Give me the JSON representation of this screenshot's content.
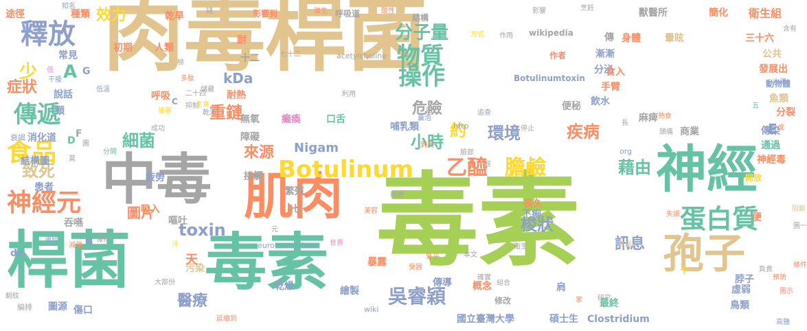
{
  "colors": {
    "tan": "#e2c48f",
    "green": "#a6cf55",
    "teal": "#66c2a5",
    "orange": "#fc8d62",
    "gray": "#a5a5a5",
    "slate": "#8da0cb",
    "pink": "#e78ac3",
    "yellow": "#ffd92f"
  },
  "words": [
    {
      "t": "肉毒桿菌",
      "c": "tan",
      "s": 118,
      "v": false
    },
    {
      "t": "毒素",
      "c": "green",
      "s": 148,
      "v": false
    },
    {
      "t": "桿菌",
      "c": "teal",
      "s": 90,
      "v": false
    },
    {
      "t": "毒素",
      "c": "teal",
      "s": 90,
      "v": false
    },
    {
      "t": "中毒",
      "c": "gray",
      "s": 80,
      "v": false
    },
    {
      "t": "肌肉",
      "c": "orange",
      "s": 72,
      "v": false
    },
    {
      "t": "神經",
      "c": "teal",
      "s": 74,
      "v": false
    },
    {
      "t": "孢子",
      "c": "tan",
      "s": 60,
      "v": false
    },
    {
      "t": "釋放",
      "c": "slate",
      "s": 40,
      "v": false
    },
    {
      "t": "Botulinum",
      "c": "yellow",
      "s": 34,
      "v": false
    },
    {
      "t": "神經元",
      "c": "orange",
      "s": 36,
      "v": false
    },
    {
      "t": "蛋白質",
      "c": "teal",
      "s": 38,
      "v": false
    },
    {
      "t": "分子量",
      "c": "teal",
      "s": 26,
      "v": false
    },
    {
      "t": "物質",
      "c": "teal",
      "s": 34,
      "v": false
    },
    {
      "t": "操作",
      "c": "teal",
      "s": 34,
      "v": false
    },
    {
      "t": "傳遞",
      "c": "teal",
      "s": 34,
      "v": false
    },
    {
      "t": "食品",
      "c": "yellow",
      "s": 36,
      "v": false
    },
    {
      "t": "乙醯",
      "c": "orange",
      "s": 30,
      "v": false
    },
    {
      "t": "膽鹼",
      "c": "yellow",
      "s": 30,
      "v": false
    },
    {
      "t": "吳睿穎",
      "c": "slate",
      "s": 28,
      "v": false
    },
    {
      "t": "toxin",
      "c": "slate",
      "s": 24,
      "v": false
    },
    {
      "t": "重鏈",
      "c": "orange",
      "s": 24,
      "v": false
    },
    {
      "t": "效力",
      "c": "yellow",
      "s": 22,
      "v": false
    },
    {
      "t": "A",
      "c": "teal",
      "s": 26,
      "v": false
    },
    {
      "t": "少",
      "c": "yellow",
      "s": 26,
      "v": false
    },
    {
      "t": "症狀",
      "c": "orange",
      "s": 22,
      "v": false
    },
    {
      "t": "細菌",
      "c": "teal",
      "s": 24,
      "v": false
    },
    {
      "t": "致死",
      "c": "tan",
      "s": 24,
      "v": false
    },
    {
      "t": "危險",
      "c": "gray",
      "s": 22,
      "v": false
    },
    {
      "t": "小時",
      "c": "teal",
      "s": 24,
      "v": false
    },
    {
      "t": "約",
      "c": "yellow",
      "s": 24,
      "v": false
    },
    {
      "t": "環境",
      "c": "slate",
      "s": 24,
      "v": false
    },
    {
      "t": "疾病",
      "c": "orange",
      "s": 24,
      "v": false
    },
    {
      "t": "藉由",
      "c": "teal",
      "s": 24,
      "v": false
    },
    {
      "t": "來源",
      "c": "orange",
      "s": 22,
      "v": false
    },
    {
      "t": "梭狀",
      "c": "slate",
      "s": 24,
      "v": false
    },
    {
      "t": "訊息",
      "c": "slate",
      "s": 22,
      "v": false
    },
    {
      "t": "醫療",
      "c": "slate",
      "s": 22,
      "v": false
    },
    {
      "t": "圖片",
      "c": "orange",
      "s": 20,
      "v": false
    },
    {
      "t": "kDa",
      "c": "slate",
      "s": 20,
      "v": false
    },
    {
      "t": "Nigam",
      "c": "slate",
      "s": 18,
      "v": false
    },
    {
      "t": "E",
      "c": "slate",
      "s": 20,
      "v": false
    },
    {
      "t": "國立臺灣大學",
      "c": "slate",
      "s": 14,
      "v": false
    },
    {
      "t": "碩士生",
      "c": "slate",
      "s": 14,
      "v": false
    },
    {
      "t": "Clostridium",
      "c": "slate",
      "s": 14,
      "v": false
    },
    {
      "t": "Botulinumtoxin",
      "c": "slate",
      "s": 12,
      "v": false
    },
    {
      "t": "wikipedia",
      "c": "gray",
      "s": 12,
      "v": false
    },
    {
      "t": "acetylcholine",
      "c": "gray",
      "s": 11,
      "v": false
    },
    {
      "t": "neurotransmitter",
      "c": "slate",
      "s": 11,
      "v": false
    },
    {
      "t": "途徑",
      "c": "orange",
      "s": 14,
      "v": false
    },
    {
      "t": "種類",
      "c": "orange",
      "s": 14,
      "v": false
    },
    {
      "t": "乾旱",
      "c": "orange",
      "s": 14,
      "v": false
    },
    {
      "t": "影響到",
      "c": "orange",
      "s": 12,
      "v": false
    },
    {
      "t": "呼吸道",
      "c": "gray",
      "s": 12,
      "v": false
    },
    {
      "t": "結構",
      "c": "gray",
      "s": 12,
      "v": false
    },
    {
      "t": "獸醫所",
      "c": "gray",
      "s": 14,
      "v": false
    },
    {
      "t": "簡化",
      "c": "orange",
      "s": 14,
      "v": false
    },
    {
      "t": "衛生組",
      "c": "orange",
      "s": 16,
      "v": false
    },
    {
      "t": "初期",
      "c": "orange",
      "s": 14,
      "v": false
    },
    {
      "t": "人類",
      "c": "orange",
      "s": 14,
      "v": false
    },
    {
      "t": "作者",
      "c": "orange",
      "s": 12,
      "v": false
    },
    {
      "t": "身體",
      "c": "orange",
      "s": 14,
      "v": false
    },
    {
      "t": "暈眩",
      "c": "tan",
      "s": 14,
      "v": false
    },
    {
      "t": "三十六",
      "c": "orange",
      "s": 14,
      "v": false
    },
    {
      "t": "公共",
      "c": "tan",
      "s": 14,
      "v": false
    },
    {
      "t": "發展出",
      "c": "orange",
      "s": 14,
      "v": false
    },
    {
      "t": "動物體",
      "c": "slate",
      "s": 12,
      "v": false
    },
    {
      "t": "魚類",
      "c": "tan",
      "s": 14,
      "v": false
    },
    {
      "t": "分裂",
      "c": "orange",
      "s": 14,
      "v": false
    },
    {
      "t": "傳染",
      "c": "slate",
      "s": 14,
      "v": false
    },
    {
      "t": "通過",
      "c": "teal",
      "s": 14,
      "v": false
    },
    {
      "t": "神經毒",
      "c": "orange",
      "s": 14,
      "v": false
    },
    {
      "t": "常見",
      "c": "slate",
      "s": 14,
      "v": false
    },
    {
      "t": "說話",
      "c": "slate",
      "s": 14,
      "v": false
    },
    {
      "t": "頸",
      "c": "slate",
      "s": 14,
      "v": false
    },
    {
      "t": "呼吸",
      "c": "orange",
      "s": 14,
      "v": false
    },
    {
      "t": "耐熱",
      "c": "orange",
      "s": 14,
      "v": false
    },
    {
      "t": "無氧",
      "c": "gray",
      "s": 14,
      "v": false
    },
    {
      "t": "障礙",
      "c": "gray",
      "s": 14,
      "v": false
    },
    {
      "t": "癱瘓",
      "c": "pink",
      "s": 14,
      "v": false
    },
    {
      "t": "口舌",
      "c": "teal",
      "s": 14,
      "v": false
    },
    {
      "t": "哺乳類",
      "c": "slate",
      "s": 14,
      "v": false
    },
    {
      "t": "手臂",
      "c": "orange",
      "s": 14,
      "v": false
    },
    {
      "t": "飲水",
      "c": "slate",
      "s": 14,
      "v": false
    },
    {
      "t": "便秘",
      "c": "gray",
      "s": 14,
      "v": false
    },
    {
      "t": "漸漸",
      "c": "slate",
      "s": 14,
      "v": false
    },
    {
      "t": "分泌",
      "c": "slate",
      "s": 14,
      "v": false
    },
    {
      "t": "食入",
      "c": "orange",
      "s": 14,
      "v": false
    },
    {
      "t": "麻痺",
      "c": "gray",
      "s": 14,
      "v": false
    },
    {
      "t": "商業",
      "c": "gray",
      "s": 14,
      "v": false
    },
    {
      "t": "開放",
      "c": "yellow",
      "s": 12,
      "v": false
    },
    {
      "t": "消化道",
      "c": "slate",
      "s": 14,
      "v": false
    },
    {
      "t": "結構圖",
      "c": "slate",
      "s": 14,
      "v": false
    },
    {
      "t": "患者",
      "c": "slate",
      "s": 14,
      "v": false
    },
    {
      "t": "疲勞",
      "c": "slate",
      "s": 14,
      "v": false
    },
    {
      "t": "吸入",
      "c": "orange",
      "s": 14,
      "v": false
    },
    {
      "t": "接觸",
      "c": "gray",
      "s": 14,
      "v": false
    },
    {
      "t": "繁殖",
      "c": "gray",
      "s": 14,
      "v": false
    },
    {
      "t": "長久",
      "c": "orange",
      "s": 14,
      "v": false
    },
    {
      "t": "下痢",
      "c": "slate",
      "s": 14,
      "v": false
    },
    {
      "t": "嘔吐",
      "c": "gray",
      "s": 14,
      "v": false
    },
    {
      "t": "吞嚥",
      "c": "gray",
      "s": 14,
      "v": false
    },
    {
      "t": "暴露",
      "c": "orange",
      "s": 14,
      "v": false
    },
    {
      "t": "污染",
      "c": "tan",
      "s": 14,
      "v": false
    },
    {
      "t": "乾燥",
      "c": "slate",
      "s": 14,
      "v": false
    },
    {
      "t": "傳導",
      "c": "slate",
      "s": 14,
      "v": false
    },
    {
      "t": "概念",
      "c": "orange",
      "s": 14,
      "v": false
    },
    {
      "t": "肩",
      "c": "slate",
      "s": 14,
      "v": false
    },
    {
      "t": "脖子",
      "c": "slate",
      "s": 14,
      "v": false
    },
    {
      "t": "虛弱",
      "c": "slate",
      "s": 14,
      "v": false
    },
    {
      "t": "鳥類",
      "c": "slate",
      "s": 14,
      "v": false
    },
    {
      "t": "最終",
      "c": "teal",
      "s": 14,
      "v": false
    },
    {
      "t": "繪製",
      "c": "slate",
      "s": 14,
      "v": false
    },
    {
      "t": "修改",
      "c": "gray",
      "s": 12,
      "v": false
    },
    {
      "t": "圖源",
      "c": "slate",
      "s": 14,
      "v": false
    },
    {
      "t": "傷口",
      "c": "slate",
      "s": 14,
      "v": false
    },
    {
      "t": "天",
      "c": "orange",
      "s": 18,
      "v": false
    },
    {
      "t": "七",
      "c": "gray",
      "s": 14,
      "v": false
    },
    {
      "t": "便",
      "c": "orange",
      "s": 14,
      "v": false
    },
    {
      "t": "傳",
      "c": "gray",
      "s": 14,
      "v": false
    },
    {
      "t": "耐",
      "c": "orange",
      "s": 14,
      "v": false
    },
    {
      "t": "十二",
      "c": "gray",
      "s": 14,
      "v": false
    },
    {
      "t": "G",
      "c": "slate",
      "s": 14,
      "v": false
    },
    {
      "t": "F",
      "c": "gray",
      "s": 14,
      "v": false
    },
    {
      "t": "D",
      "c": "teal",
      "s": 14,
      "v": false
    },
    {
      "t": "B",
      "c": "slate",
      "s": 14,
      "v": false
    },
    {
      "t": "de",
      "c": "slate",
      "s": 14,
      "v": false
    },
    {
      "t": "http",
      "c": "slate",
      "s": 11,
      "v": false
    },
    {
      "t": "org",
      "c": "slate",
      "s": 11,
      "v": false
    },
    {
      "t": "wiki",
      "c": "slate",
      "s": 11,
      "v": false
    },
    {
      "t": "二十四",
      "c": "gray",
      "s": 10,
      "v": false
    },
    {
      "t": "利用",
      "c": "gray",
      "s": 10,
      "v": false
    },
    {
      "t": "七十二",
      "c": "gray",
      "s": 10,
      "v": false
    },
    {
      "t": "頭痛",
      "c": "gray",
      "s": 10,
      "v": false
    },
    {
      "t": "外乎",
      "c": "orange",
      "s": 10,
      "v": false
    },
    {
      "t": "本文",
      "c": "gray",
      "s": 10,
      "v": false
    },
    {
      "t": "大部份",
      "c": "gray",
      "s": 10,
      "v": false
    },
    {
      "t": "延續到",
      "c": "orange",
      "s": 10,
      "v": false
    },
    {
      "t": "確實",
      "c": "gray",
      "s": 10,
      "v": false
    },
    {
      "t": "組合",
      "c": "gray",
      "s": 10,
      "v": false
    },
    {
      "t": "家",
      "c": "orange",
      "s": 10,
      "v": false
    },
    {
      "t": "研究",
      "c": "gray",
      "s": 10,
      "v": false
    },
    {
      "t": "預防",
      "c": "orange",
      "s": 10,
      "v": false
    },
    {
      "t": "負責",
      "c": "gray",
      "s": 10,
      "v": false
    },
    {
      "t": "世界",
      "c": "pink",
      "s": 10,
      "v": false
    },
    {
      "t": "連結",
      "c": "slate",
      "s": 10,
      "v": false
    },
    {
      "t": "保存",
      "c": "gray",
      "s": 10,
      "v": false
    },
    {
      "t": "減菌",
      "c": "orange",
      "s": 10,
      "v": false
    },
    {
      "t": "輕捷",
      "c": "gray",
      "s": 10,
      "v": false
    },
    {
      "t": "美容",
      "c": "orange",
      "s": 10,
      "v": false
    },
    {
      "t": "衛生",
      "c": "gray",
      "s": 10,
      "v": false
    },
    {
      "t": "追查",
      "c": "slate",
      "s": 10,
      "v": false
    },
    {
      "t": "停止",
      "c": "gray",
      "s": 10,
      "v": false
    },
    {
      "t": "臉部",
      "c": "gray",
      "s": 10,
      "v": false
    },
    {
      "t": "失調",
      "c": "orange",
      "s": 10,
      "v": false
    },
    {
      "t": "受器",
      "c": "orange",
      "s": 10,
      "v": false
    },
    {
      "t": "汗",
      "c": "yellow",
      "s": 10,
      "v": false
    },
    {
      "t": "元",
      "c": "gray",
      "s": 10,
      "v": false
    },
    {
      "t": "高溫",
      "c": "tan",
      "s": 10,
      "v": false
    },
    {
      "t": "條件",
      "c": "orange",
      "s": 10,
      "v": false
    },
    {
      "t": "圖一",
      "c": "gray",
      "s": 10,
      "v": false
    },
    {
      "t": "阻斷",
      "c": "tan",
      "s": 10,
      "v": false
    },
    {
      "t": "圖示",
      "c": "orange",
      "s": 10,
      "v": false
    },
    {
      "t": "高鹽",
      "c": "slate",
      "s": 10,
      "v": false
    },
    {
      "t": "衰竭",
      "c": "slate",
      "s": 11,
      "v": false
    },
    {
      "t": "分開",
      "c": "teal",
      "s": 10,
      "v": false
    },
    {
      "t": "成",
      "c": "orange",
      "s": 10,
      "v": false
    },
    {
      "t": "五",
      "c": "teal",
      "s": 10,
      "v": false
    },
    {
      "t": "熟食",
      "c": "orange",
      "s": 10,
      "v": false
    },
    {
      "t": "長",
      "c": "gray",
      "s": 10,
      "v": false
    },
    {
      "t": "水源",
      "c": "slate",
      "s": 10,
      "v": false
    },
    {
      "t": "含有",
      "c": "gray",
      "s": 10,
      "v": false
    },
    {
      "t": "烹飪",
      "c": "gray",
      "s": 10,
      "v": false
    },
    {
      "t": "影響",
      "c": "gray",
      "s": 10,
      "v": false
    },
    {
      "t": "作用",
      "c": "gray",
      "s": 10,
      "v": false
    },
    {
      "t": "方式",
      "c": "yellow",
      "s": 10,
      "v": false
    },
    {
      "t": "酸性",
      "c": "orange",
      "s": 10,
      "v": false
    },
    {
      "t": "滋生",
      "c": "orange",
      "s": 10,
      "v": false
    },
    {
      "t": "鏈",
      "c": "gray",
      "s": 10,
      "v": false
    },
    {
      "t": "知名",
      "c": "slate",
      "s": 10,
      "v": false
    },
    {
      "t": "低",
      "c": "pink",
      "s": 10,
      "v": false
    },
    {
      "t": "干擾",
      "c": "slate",
      "s": 10,
      "v": false
    },
    {
      "t": "低溫",
      "c": "slate",
      "s": 10,
      "v": false
    },
    {
      "t": "極",
      "c": "gray",
      "s": 10,
      "v": false
    },
    {
      "t": "儲藏",
      "c": "gray",
      "s": 10,
      "v": false
    },
    {
      "t": "多肽",
      "c": "orange",
      "s": 10,
      "v": false
    },
    {
      "t": "C",
      "c": "slate",
      "s": 12,
      "v": false
    },
    {
      "t": "抽審",
      "c": "yellow",
      "s": 10,
      "v": false
    },
    {
      "t": "抑制",
      "c": "gray",
      "s": 10,
      "v": false
    },
    {
      "t": "成功",
      "c": "gray",
      "s": 10,
      "v": false
    },
    {
      "t": "乾淨",
      "c": "slate",
      "s": 10,
      "v": false
    },
    {
      "t": "生食",
      "c": "yellow",
      "s": 10,
      "v": false
    },
    {
      "t": "囊泡",
      "c": "slate",
      "s": 10,
      "v": false
    },
    {
      "t": "四",
      "c": "gray",
      "s": 10,
      "v": false
    },
    {
      "t": "剝皮",
      "c": "orange",
      "s": 10,
      "v": false
    },
    {
      "t": "圖",
      "c": "gray",
      "s": 10,
      "v": false
    },
    {
      "t": "莫",
      "c": "gray",
      "s": 10,
      "v": false
    },
    {
      "t": "翻紋",
      "c": "gray",
      "s": 10,
      "v": false
    },
    {
      "t": "編排",
      "c": "gray",
      "s": 11,
      "v": false
    },
    {
      "t": "輕",
      "c": "gray",
      "s": 10,
      "v": false
    },
    {
      "t": "十",
      "c": "yellow",
      "s": 12,
      "v": false
    }
  ]
}
